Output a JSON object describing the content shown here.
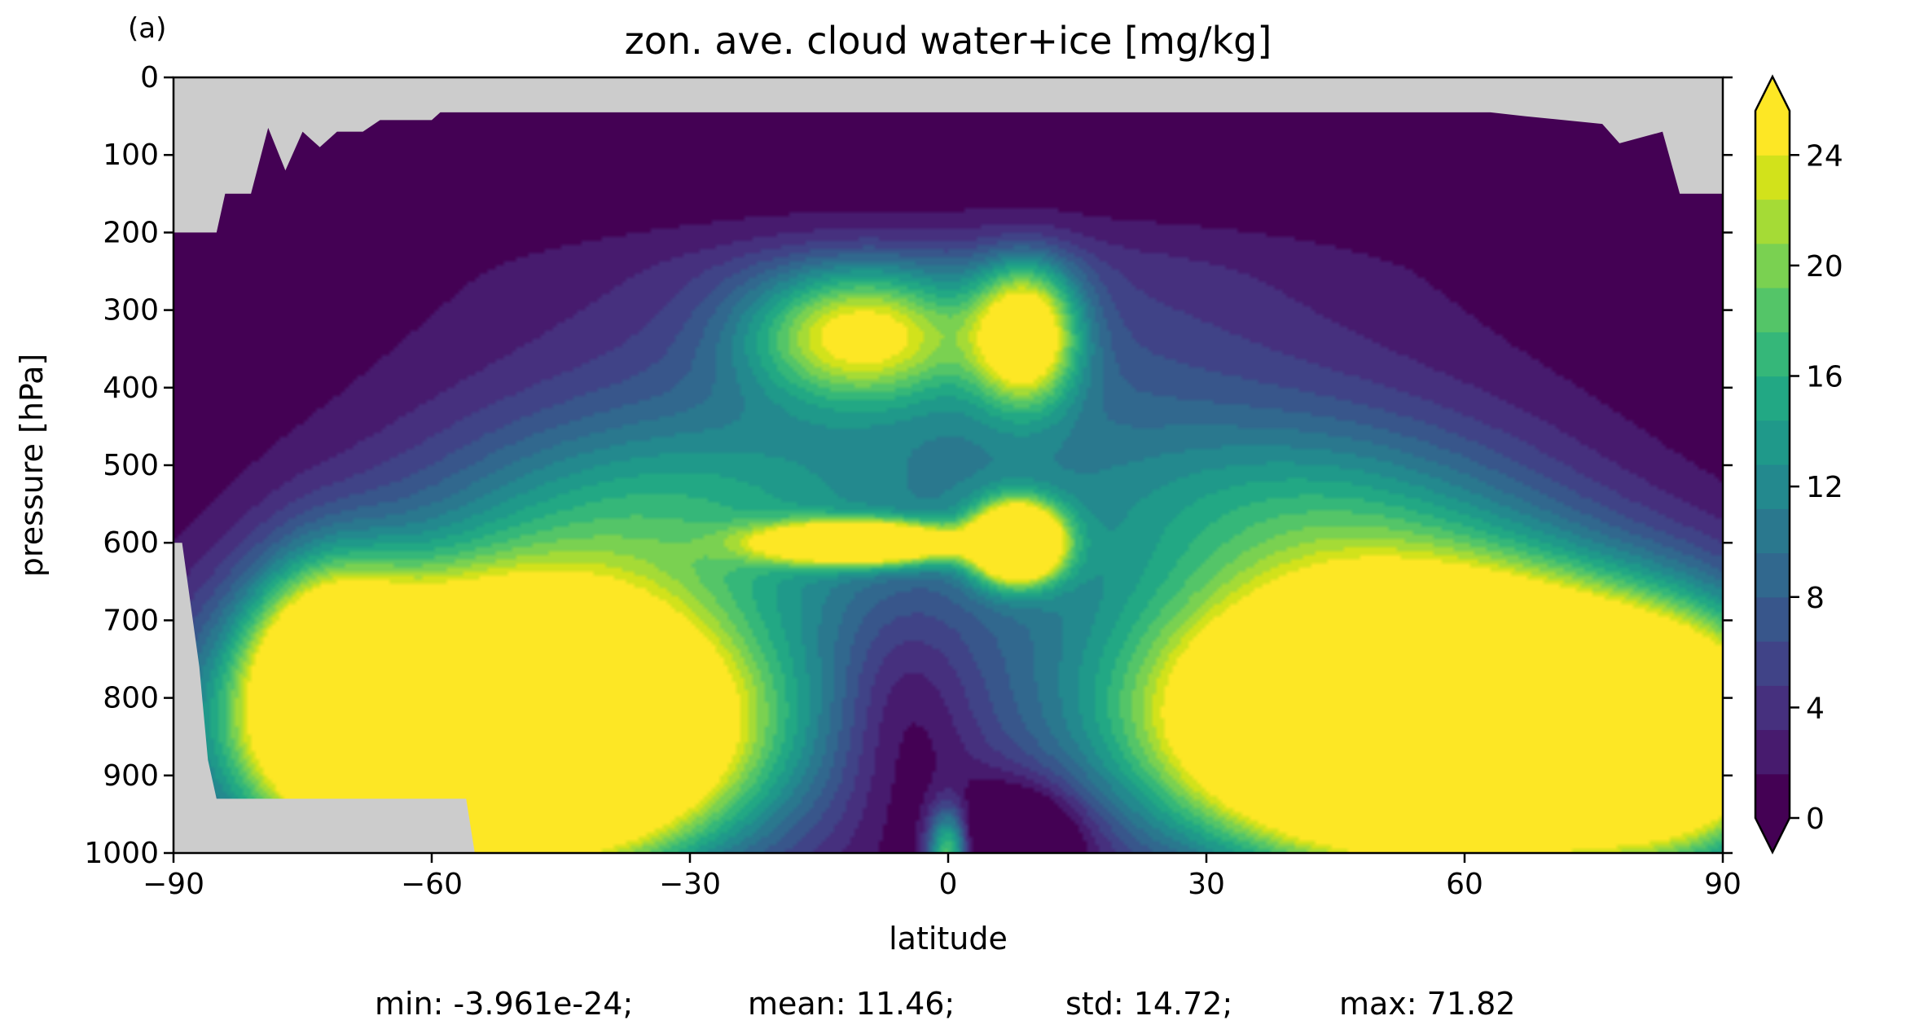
{
  "figure": {
    "panel_label": "(a)",
    "stats": {
      "min": "min: -3.961e-24;",
      "mean": "mean: 11.46;",
      "std": "std: 14.72;",
      "max": "max: 71.82"
    }
  },
  "colors": {
    "missing": "#cccccc",
    "levels": [
      "#440154",
      "#471b6e",
      "#46307e",
      "#404387",
      "#38568b",
      "#31688e",
      "#2a788e",
      "#23898e",
      "#1f998a",
      "#22a884",
      "#35b779",
      "#54c568",
      "#7ad151",
      "#a5db36",
      "#d2e21b",
      "#fde725"
    ],
    "under": "#440154",
    "over": "#fde725"
  },
  "chart_data": {
    "type": "heatmap",
    "subtype": "filled-contour",
    "title": "zon. ave. cloud water+ice [mg/kg]",
    "xlabel": "latitude",
    "ylabel": "pressure [hPa]",
    "xlim": [
      -90,
      90
    ],
    "ylim": [
      1000,
      0
    ],
    "xticks": [
      -90,
      -60,
      -30,
      0,
      30,
      60,
      90
    ],
    "xtick_labels": [
      "−90",
      "−60",
      "−30",
      "0",
      "30",
      "60",
      "90"
    ],
    "yticks": [
      0,
      100,
      200,
      300,
      400,
      500,
      600,
      700,
      800,
      900,
      1000
    ],
    "ytick_labels": [
      "0",
      "100",
      "200",
      "300",
      "400",
      "500",
      "600",
      "700",
      "800",
      "900",
      "1000"
    ],
    "colorbar": {
      "levels": [
        0,
        1.6,
        3.2,
        4.8,
        6.4,
        8,
        9.6,
        11.2,
        12.8,
        14.4,
        16,
        17.6,
        19.2,
        20.8,
        22.4,
        24,
        25.6
      ],
      "ticks": [
        0,
        4,
        8,
        12,
        16,
        20,
        24
      ],
      "tick_labels": [
        "0",
        "4",
        "8",
        "12",
        "16",
        "20",
        "24"
      ],
      "extend": "both"
    },
    "field_description": "zonal-average cloud water+ice (mg/kg) vs latitude and pressure",
    "features": [
      {
        "name": "SH low cloud max",
        "lat": [
          -80,
          -32
        ],
        "p_hPa": [
          660,
          1000
        ],
        "value": ">=25.6"
      },
      {
        "name": "NH low cloud max",
        "lat": [
          32,
          90
        ],
        "p_hPa": [
          650,
          1000
        ],
        "value": ">=25.6"
      },
      {
        "name": "tropical mid-level max (south)",
        "lat": -10,
        "p_hPa": 600,
        "value": ">=25.6"
      },
      {
        "name": "tropical mid-level max (north)",
        "lat": 8,
        "p_hPa": 600,
        "value": ">=25.6"
      },
      {
        "name": "upper tropospheric max (south)",
        "lat": -10,
        "p_hPa": 300,
        "value": 20
      },
      {
        "name": "upper tropospheric max (north)",
        "lat": 9,
        "p_hPa": 300,
        "value": 22
      }
    ],
    "missing_regions": [
      {
        "name": "Antarctic orography",
        "lat": [
          -90,
          -55
        ],
        "p_hPa": [
          600,
          1000
        ]
      },
      {
        "name": "stratosphere (no data)",
        "lat": [
          -90,
          90
        ],
        "p_hPa": [
          0,
          200
        ]
      }
    ]
  }
}
